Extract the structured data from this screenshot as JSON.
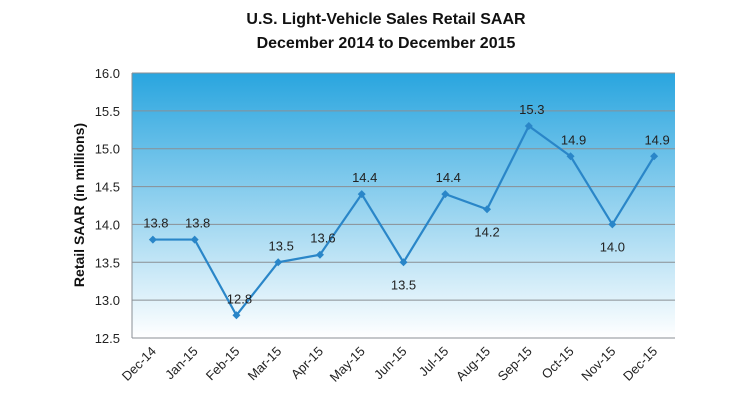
{
  "chart_data": {
    "type": "line",
    "title": "U.S. Light-Vehicle Sales Retail SAAR",
    "subtitle": "December 2014 to December 2015",
    "xlabel": "",
    "ylabel": "Retail SAAR (in millions)",
    "ylim": [
      12.5,
      16.0
    ],
    "yticks": [
      "12.5",
      "13.0",
      "13.5",
      "14.0",
      "14.5",
      "15.0",
      "15.5",
      "16.0"
    ],
    "grid": true,
    "categories": [
      "Dec-14",
      "Jan-15",
      "Feb-15",
      "Mar-15",
      "Apr-15",
      "May-15",
      "Jun-15",
      "Jul-15",
      "Aug-15",
      "Sep-15",
      "Oct-15",
      "Nov-15",
      "Dec-15"
    ],
    "values": [
      13.8,
      13.8,
      12.8,
      13.5,
      13.6,
      14.4,
      13.5,
      14.4,
      14.2,
      15.3,
      14.9,
      14.0,
      14.9
    ],
    "data_labels": [
      "13.8",
      "13.8",
      "12.8",
      "13.5",
      "13.6",
      "14.4",
      "13.5",
      "14.4",
      "14.2",
      "15.3",
      "14.9",
      "14.0",
      "14.9"
    ],
    "colors": {
      "line": "#2a86c8",
      "bg_top": "#29a5df",
      "bg_bottom": "#ffffff",
      "grid": "#8a8f94"
    }
  }
}
